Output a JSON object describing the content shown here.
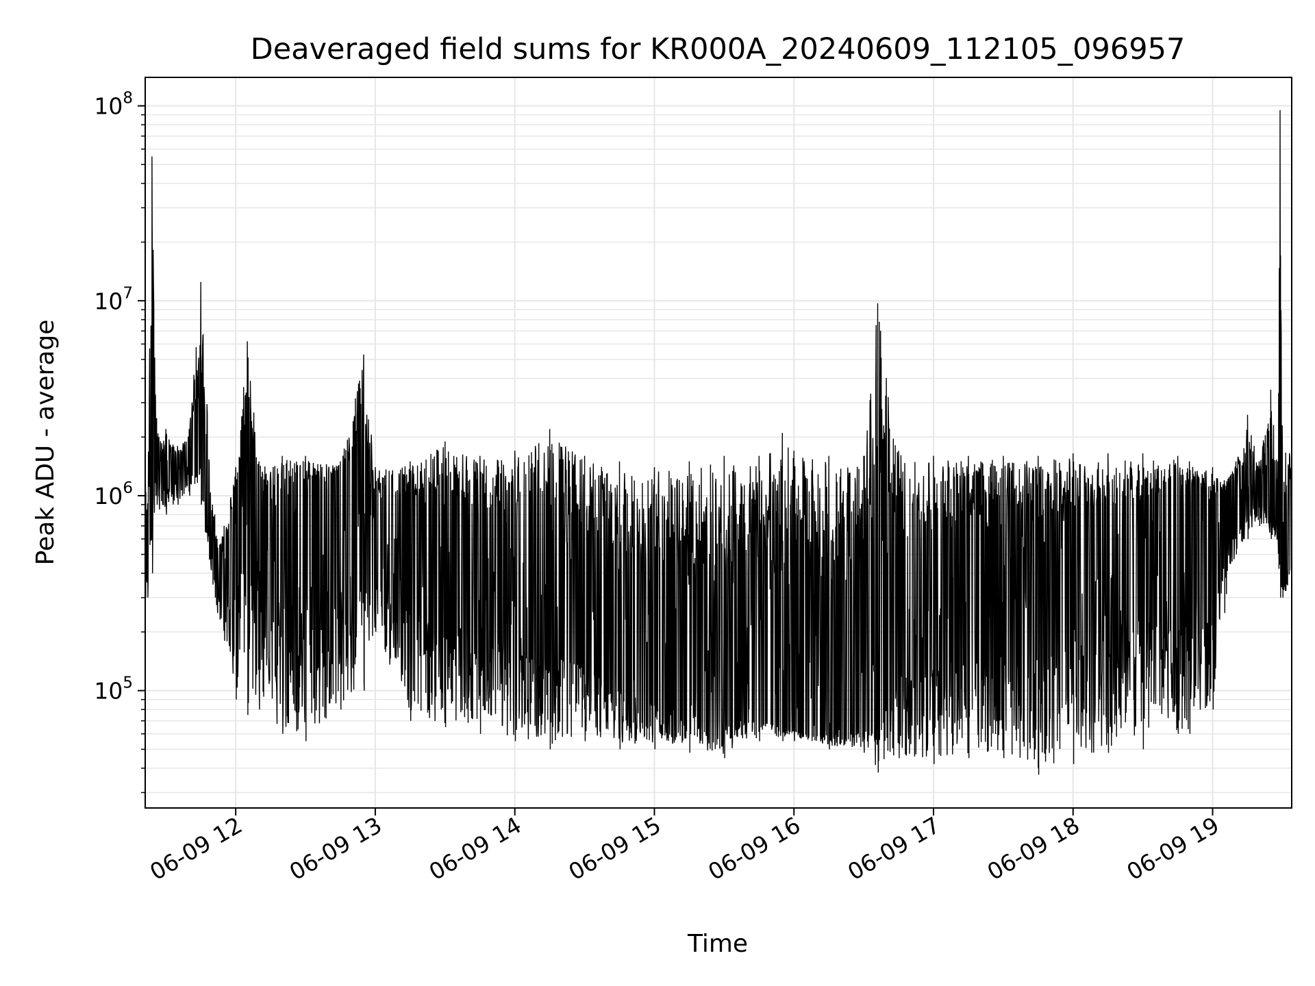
{
  "chart_data": {
    "type": "line",
    "title": "Deaveraged field sums for KR000A_20240609_112105_096957",
    "xlabel": "Time",
    "ylabel": "Peak ADU - average",
    "yscale": "log",
    "ylim": [
      25000,
      140000000
    ],
    "xlim": [
      "2024-06-09 11:21:05",
      "2024-06-09 19:34:00"
    ],
    "grid": true,
    "line_color": "#000000",
    "grid_color": "#e6e6e6",
    "x_ticks": [
      {
        "time": "2024-06-09 12:00:00",
        "label": "06-09 12"
      },
      {
        "time": "2024-06-09 13:00:00",
        "label": "06-09 13"
      },
      {
        "time": "2024-06-09 14:00:00",
        "label": "06-09 14"
      },
      {
        "time": "2024-06-09 15:00:00",
        "label": "06-09 15"
      },
      {
        "time": "2024-06-09 16:00:00",
        "label": "06-09 16"
      },
      {
        "time": "2024-06-09 17:00:00",
        "label": "06-09 17"
      },
      {
        "time": "2024-06-09 18:00:00",
        "label": "06-09 18"
      },
      {
        "time": "2024-06-09 19:00:00",
        "label": "06-09 19"
      }
    ],
    "y_ticks": [
      {
        "value": 100000,
        "base": "10",
        "exp": "5"
      },
      {
        "value": 1000000,
        "base": "10",
        "exp": "6"
      },
      {
        "value": 10000000,
        "base": "10",
        "exp": "7"
      },
      {
        "value": 100000000,
        "base": "10",
        "exp": "8"
      }
    ],
    "series": [
      {
        "x": [
          "2024-06-09 11:21:05",
          "2024-06-09 11:22:00",
          "2024-06-09 11:24:00",
          "2024-06-09 11:25:30",
          "2024-06-09 11:26:00",
          "2024-06-09 11:27:00",
          "2024-06-09 11:30:00",
          "2024-06-09 11:35:00",
          "2024-06-09 11:40:00",
          "2024-06-09 11:45:00",
          "2024-06-09 11:50:00",
          "2024-06-09 11:51:00",
          "2024-06-09 11:52:00",
          "2024-06-09 11:55:00",
          "2024-06-09 12:00:00",
          "2024-06-09 12:05:00",
          "2024-06-09 12:10:00",
          "2024-06-09 12:20:00",
          "2024-06-09 12:30:00",
          "2024-06-09 12:45:00",
          "2024-06-09 12:55:00",
          "2024-06-09 13:00:00",
          "2024-06-09 13:15:00",
          "2024-06-09 13:30:00",
          "2024-06-09 13:45:00",
          "2024-06-09 14:00:00",
          "2024-06-09 14:15:00",
          "2024-06-09 14:30:00",
          "2024-06-09 14:45:00",
          "2024-06-09 15:00:00",
          "2024-06-09 15:15:00",
          "2024-06-09 15:30:00",
          "2024-06-09 15:45:00",
          "2024-06-09 15:55:00",
          "2024-06-09 16:00:00",
          "2024-06-09 16:15:00",
          "2024-06-09 16:30:00",
          "2024-06-09 16:36:00",
          "2024-06-09 16:45:00",
          "2024-06-09 17:00:00",
          "2024-06-09 17:15:00",
          "2024-06-09 17:30:00",
          "2024-06-09 17:45:00",
          "2024-06-09 18:00:00",
          "2024-06-09 18:15:00",
          "2024-06-09 18:30:00",
          "2024-06-09 18:45:00",
          "2024-06-09 18:50:00",
          "2024-06-09 19:00:00",
          "2024-06-09 19:05:00",
          "2024-06-09 19:10:00",
          "2024-06-09 19:15:00",
          "2024-06-09 19:20:00",
          "2024-06-09 19:25:00",
          "2024-06-09 19:28:00",
          "2024-06-09 19:29:00",
          "2024-06-09 19:30:00",
          "2024-06-09 19:34:00"
        ],
        "high": [
          1600000,
          800000,
          55000000,
          3300000,
          2500000,
          2000000,
          2200000,
          1800000,
          2200000,
          12500000,
          900000,
          800000,
          600000,
          700000,
          1400000,
          6200000,
          1500000,
          1600000,
          1600000,
          1500000,
          5300000,
          1400000,
          1500000,
          1900000,
          1600000,
          1700000,
          2200000,
          1600000,
          1500000,
          1400000,
          1500000,
          1600000,
          1600000,
          2100000,
          1700000,
          1600000,
          1600000,
          9700000,
          1700000,
          1600000,
          1600000,
          1600000,
          1600000,
          1650000,
          1650000,
          1650000,
          1600000,
          1500000,
          1400000,
          1200000,
          1500000,
          2600000,
          1500000,
          3500000,
          1500000,
          95000000,
          1800000,
          1800000
        ],
        "low": [
          300000,
          300000,
          400000,
          1000000,
          900000,
          850000,
          800000,
          900000,
          1000000,
          900000,
          350000,
          300000,
          250000,
          180000,
          90000,
          75000,
          80000,
          60000,
          55000,
          80000,
          100000,
          200000,
          70000,
          65000,
          60000,
          55000,
          50000,
          55000,
          50000,
          50000,
          48000,
          45000,
          55000,
          55000,
          55000,
          50000,
          48000,
          38000,
          45000,
          42000,
          45000,
          45000,
          37000,
          42000,
          48000,
          50000,
          60000,
          60000,
          80000,
          250000,
          500000,
          600000,
          700000,
          600000,
          550000,
          300000,
          300000,
          320000
        ],
        "base": [
          400000,
          600000,
          1200000,
          1400000,
          1300000,
          1200000,
          1300000,
          1400000,
          1500000,
          1800000,
          600000,
          500000,
          450000,
          350000,
          600000,
          800000,
          700000,
          800000,
          900000,
          900000,
          1000000,
          700000,
          600000,
          500000,
          400000,
          350000,
          300000,
          250000,
          150000,
          120000,
          100000,
          90000,
          80000,
          70000,
          65000,
          65000,
          70000,
          100000,
          200000,
          300000,
          350000,
          350000,
          350000,
          400000,
          400000,
          500000,
          700000,
          900000,
          600000,
          900000,
          1000000,
          1000000,
          950000,
          900000,
          850000,
          500000,
          450000,
          600000
        ]
      }
    ]
  }
}
